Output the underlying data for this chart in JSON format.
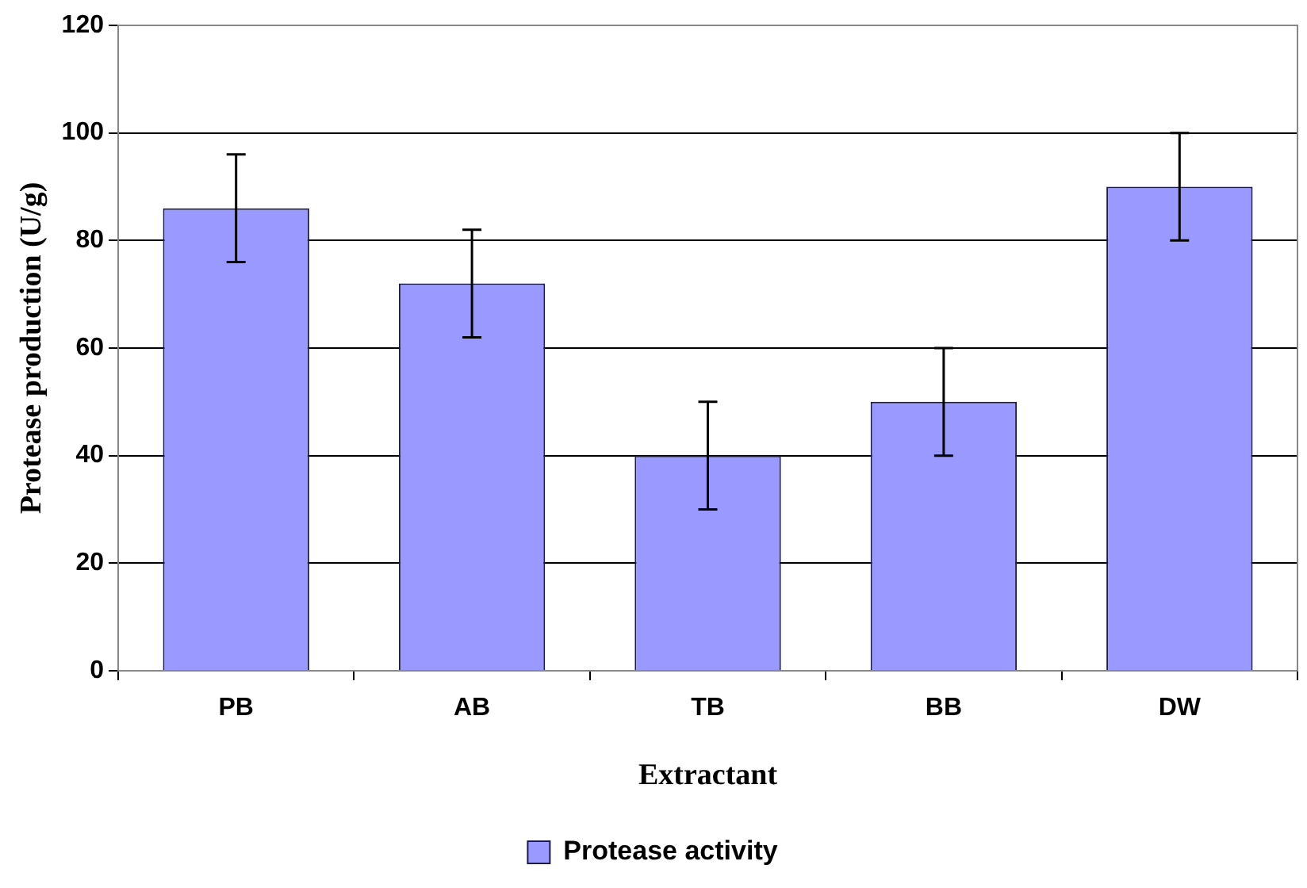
{
  "chart_data": {
    "type": "bar",
    "xlabel": "Extractant",
    "ylabel": "Protease production (U/g)",
    "categories": [
      "PB",
      "AB",
      "TB",
      "BB",
      "DW"
    ],
    "series": [
      {
        "name": "Protease activity",
        "color": "#9999ff",
        "values": [
          86,
          72,
          40,
          50,
          90
        ],
        "errors": [
          10,
          10,
          10,
          10,
          10
        ]
      }
    ],
    "ylim": [
      0,
      120
    ],
    "yticks": [
      0,
      20,
      40,
      60,
      80,
      100,
      120
    ],
    "grid": "y",
    "legend": "bottom"
  }
}
